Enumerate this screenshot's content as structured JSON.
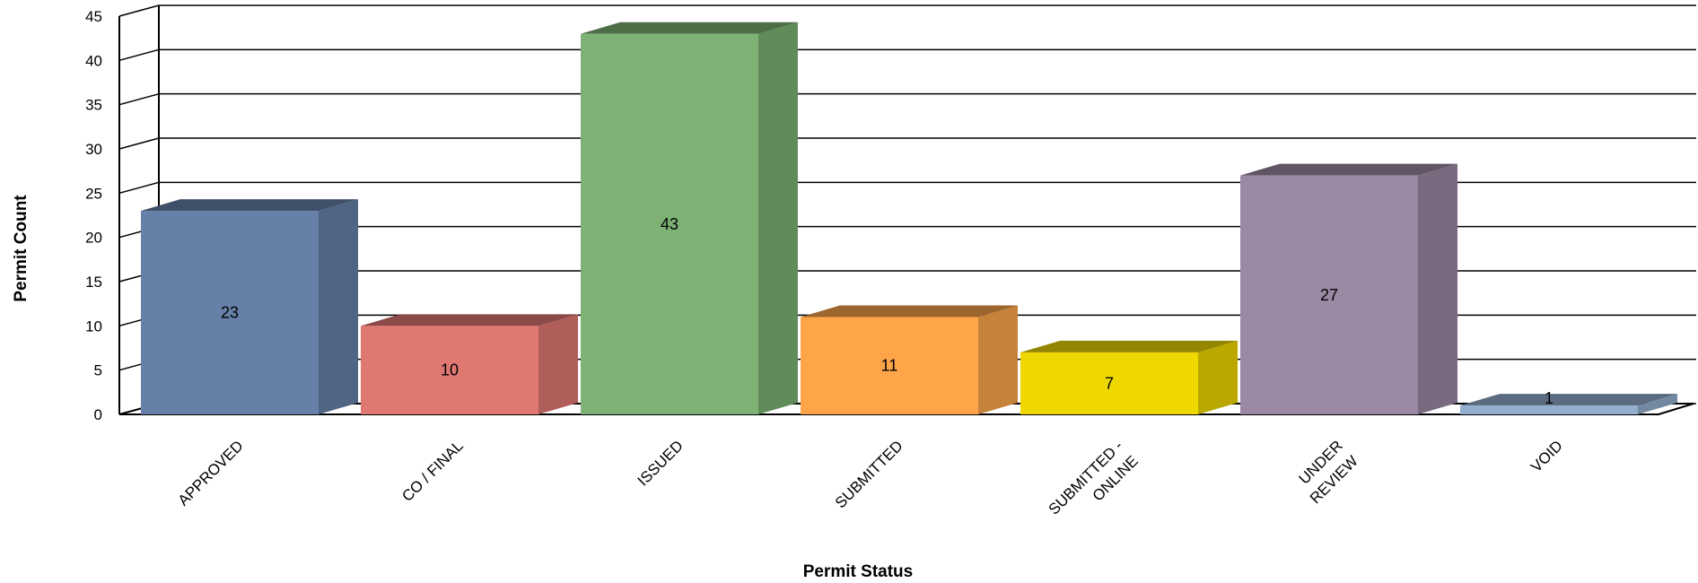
{
  "chart_data": {
    "type": "bar",
    "style": "3d-bar",
    "categories": [
      "APPROVED",
      "CO / FINAL",
      "ISSUED",
      "SUBMITTED",
      "SUBMITTED - ONLINE",
      "UNDER REVIEW",
      "VOID"
    ],
    "category_label_lines": [
      [
        "APPROVED"
      ],
      [
        "CO / FINAL"
      ],
      [
        "ISSUED"
      ],
      [
        "SUBMITTED"
      ],
      [
        "SUBMITTED -",
        "ONLINE"
      ],
      [
        "UNDER",
        "REVIEW"
      ],
      [
        "VOID"
      ]
    ],
    "values": [
      23,
      10,
      43,
      11,
      7,
      27,
      1
    ],
    "colors": [
      "#6680a8",
      "#e07872",
      "#7db274",
      "#fea54a",
      "#eed800",
      "#9b88a3",
      "#94aecf"
    ],
    "xlabel": "Permit Status",
    "ylabel": "Permit Count",
    "ylim": [
      0,
      45
    ],
    "yticks": [
      0,
      5,
      10,
      15,
      20,
      25,
      30,
      35,
      40,
      45
    ],
    "grid": true,
    "legend": "none"
  }
}
